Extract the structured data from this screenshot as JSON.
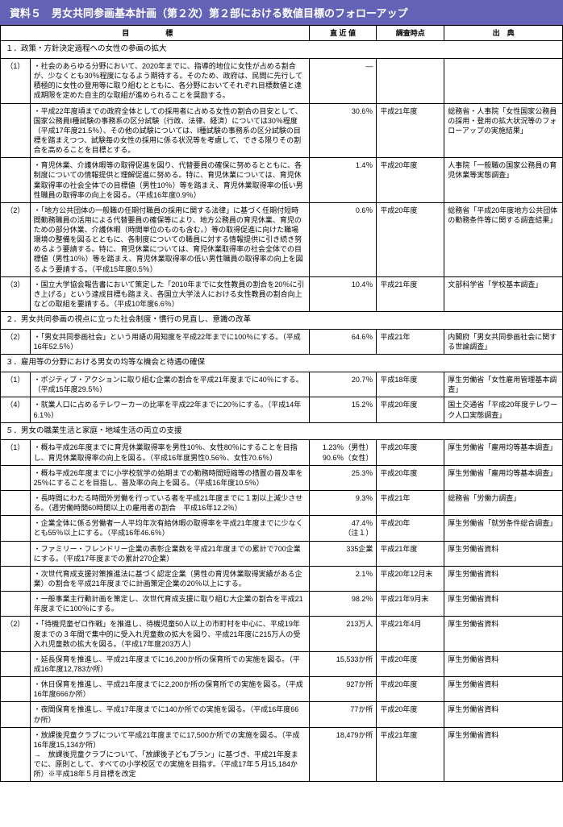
{
  "title": "資料５　男女共同参画基本計画（第２次）第２部における数値目標のフォローアップ",
  "headers": {
    "mokuhyo": "目　標",
    "chokin": "直  近  値",
    "chosa": "調査時点",
    "shutten": "出　典"
  },
  "sections": [
    {
      "label": "１．政策・方針決定過程への女性の参画の拡大",
      "rows": [
        {
          "num": "（1）",
          "goal": "・社会のあらゆる分野において、2020年までに、指導的地位に女性が占める割合が、少なくとも30％程度になるよう期待する。そのため、政府は、民間に先行して積極的に女性の登用等に取り組むとともに、各分野においてそれぞれ目標数値と達成期限を定めた自主的な取組が進められることを奨励する。",
          "value": "—",
          "time": "",
          "src": ""
        },
        {
          "num": "",
          "goal": "・平成22年度頃までの政府全体としての採用者に占める女性の割合の目安として、国家公務員Ⅰ種試験の事務系の区分試験（行政、法律、経済）については30％程度（平成17年度21.5％）、その他の試験については、Ⅰ種試験の事務系の区分試験の目標を踏まえつつ、試験毎の女性の採用に係る状況等を考慮して、できる限りその割合を高めることを目標とする。",
          "value": "30.6％",
          "time": "平成21年度",
          "src": "総務省・人事院「女性国家公務員の採用・登用の拡大状況等のフォローアップの実施結果」"
        },
        {
          "num": "",
          "goal": "・育児休業、介護休暇等の取得促進を図り、代替要員の確保に努めるとともに、各制度についての情報提供と理解促進に努める。特に、育児休業については、育児休業取得率の社会全体での目標値（男性10％）等を踏まえ、育児休業取得率の低い男性職員の取得率の向上を図る。（平成16年度0.9％）",
          "value": "1.4％",
          "time": "平成20年度",
          "src": "人事院「一般職の国家公務員の育児休業等実態調査」"
        },
        {
          "num": "（2）",
          "goal": "・「地方公共団体の一般職の任期付職員の採用に関する法律」に基づく任期付短時間勤務職員の活用による代替要員の確保等により、地方公務員の育児休業、育児のための部分休業、介護休暇（時間単位のものも含む。）等の取得促進に向けた職場環境の整備を図るとともに、各制度についての職員に対する情報提供に引き続き努めるよう要請する。特に、育児休業については、育児休業取得率の社会全体での目標値（男性10％）等を踏まえ、育児休業取得率の低い男性職員の取得率の向上を図るよう要請する。（平成15年度0.5％）",
          "value": "0.6％",
          "time": "平成20年度",
          "src": "総務省「平成20年度地方公共団体の勤務条件等に関する調査結果」"
        },
        {
          "num": "（3）",
          "goal": "・国立大学協会報告書において策定した「2010年までに女性教員の割合を20％に引き上げる」という達成目標も踏まえ、各国立大学法人における女性教員の割合向上などの取組を要請する。（平成10年度6.6％）",
          "value": "10.4％",
          "time": "平成21年度",
          "src": "文部科学省「学校基本調査」"
        }
      ]
    },
    {
      "label": "２．男女共同参画の視点に立った社会制度・慣行の見直し、意識の改革",
      "rows": [
        {
          "num": "（2）",
          "goal": "・「男女共同参画社会」という用語の周知度を平成22年までに100％にする。（平成16年52.5％）",
          "value": "64.6％",
          "time": "平成21年",
          "src": "内閣府「男女共同参画社会に関する世論調査」"
        }
      ]
    },
    {
      "label": "３．雇用等の分野における男女の均等な機会と待遇の確保",
      "rows": [
        {
          "num": "（1）",
          "goal": "・ポジティブ・アクションに取り組む企業の割合を平成21年度までに40％にする。（平成15年度29.5％）",
          "value": "20.7％",
          "time": "平成18年度",
          "src": "厚生労働省「女性雇用管理基本調査」"
        },
        {
          "num": "（4）",
          "goal": "・就業人口に占めるテレワーカーの比率を平成22年までに20％にする。（平成14年6.1％）",
          "value": "15.2％",
          "time": "平成20年度",
          "src": "国土交通省「平成20年度テレワーク人口実態調査」"
        }
      ]
    },
    {
      "label": "５．男女の職業生活と家庭・地域生活の両立の支援",
      "rows": [
        {
          "num": "（1）",
          "goal": "・概ね平成26年度までに育児休業取得率を男性10％、女性80％にすることを目指し、育児休業取得率の向上を図る。（平成16年度男性0.56％、女性70.6％）",
          "value": "1.23％（男性）\n90.6％（女性）",
          "time": "平成20年度",
          "src": "厚生労働省「雇用均等基本調査」"
        },
        {
          "num": "",
          "goal": "・概ね平成26年度までに小学校就学の始期までの勤務時間短縮等の措置の普及率を25％にすることを目指し、普及率の向上を図る。（平成16年度10.5％）",
          "value": "25.3％",
          "time": "平成20年度",
          "src": "厚生労働省「雇用均等基本調査」"
        },
        {
          "num": "",
          "goal": "・長時間にわたる時間外労働を行っている者を平成21年度までに１割以上減少させる。（週労働時間60時間以上の雇用者の割合　平成16年12.2％）",
          "value": "9.3％",
          "time": "平成21年",
          "src": "総務省「労働力調査」"
        },
        {
          "num": "",
          "goal": "・企業全体に係る労働者一人平均年次有給休暇の取得率を平成21年度までに少なくとも55％以上にする。（平成16年46.6％）",
          "value": "47.4％\n（注１）",
          "time": "平成20年",
          "src": "厚生労働省「就労条件総合調査」"
        },
        {
          "num": "",
          "goal": "・ファミリー・フレンドリー企業の表彰企業数を平成21年度までの累計で700企業にする。（平成17年度までの累計270企業）",
          "value": "335企業",
          "time": "平成21年度",
          "src": "厚生労働省資料"
        },
        {
          "num": "",
          "goal": "・次世代育成支援対策推進法に基づく認定企業（男性の育児休業取得実績がある企業）の割合を平成21年度までに計画策定企業の20％以上にする。",
          "value": "2.1％",
          "time": "平成20年12月末",
          "src": "厚生労働省資料"
        },
        {
          "num": "",
          "goal": "・一般事業主行動計画を策定し、次世代育成支援に取り組む大企業の割合を平成21年度までに100％にする。",
          "value": "98.2％",
          "time": "平成21年9月末",
          "src": "厚生労働省資料"
        },
        {
          "num": "（2）",
          "goal": "・「待機児童ゼロ作戦」を推進し、待機児童50人以上の市町村を中心に、平成19年度までの３年間で集中的に受入れ児童数の拡大を図り、平成21年度に215万人の受入れ児童数の拡大を図る。（平成17年度203万人）",
          "value": "213万人",
          "time": "平成21年4月",
          "src": "厚生労働省資料"
        },
        {
          "num": "",
          "goal": "・延長保育を推進し、平成21年度までに16,200か所の保育所での実施を図る。（平成16年度12,783か所）",
          "value": "15,533か所",
          "time": "平成20年度",
          "src": "厚生労働省資料"
        },
        {
          "num": "",
          "goal": "・休日保育を推進し、平成21年度までに2,200か所の保育所での実施を図る。（平成16年度666か所）",
          "value": "927か所",
          "time": "平成20年度",
          "src": "厚生労働省資料"
        },
        {
          "num": "",
          "goal": "・夜間保育を推進し、平成17年度までに140か所での実施を図る。（平成16年度66か所）",
          "value": "77か所",
          "time": "平成20年度",
          "src": "厚生労働省資料"
        },
        {
          "num": "",
          "goal": "・放課後児童クラブについて平成21年度までに17,500か所での実施を図る。（平成16年度15,134か所）\n→　放課後児童クラブについて、「放課後子どもプラン」に基づき、平成21年度までに、原則として、すべての小学校区での実施を目指す。（平成17年５月15,184か所）※平成18年５月目標を改定",
          "value": "18,479か所",
          "time": "平成21年度",
          "src": "厚生労働省資料"
        }
      ]
    }
  ],
  "colors": {
    "headerBg": "#6462b7"
  }
}
